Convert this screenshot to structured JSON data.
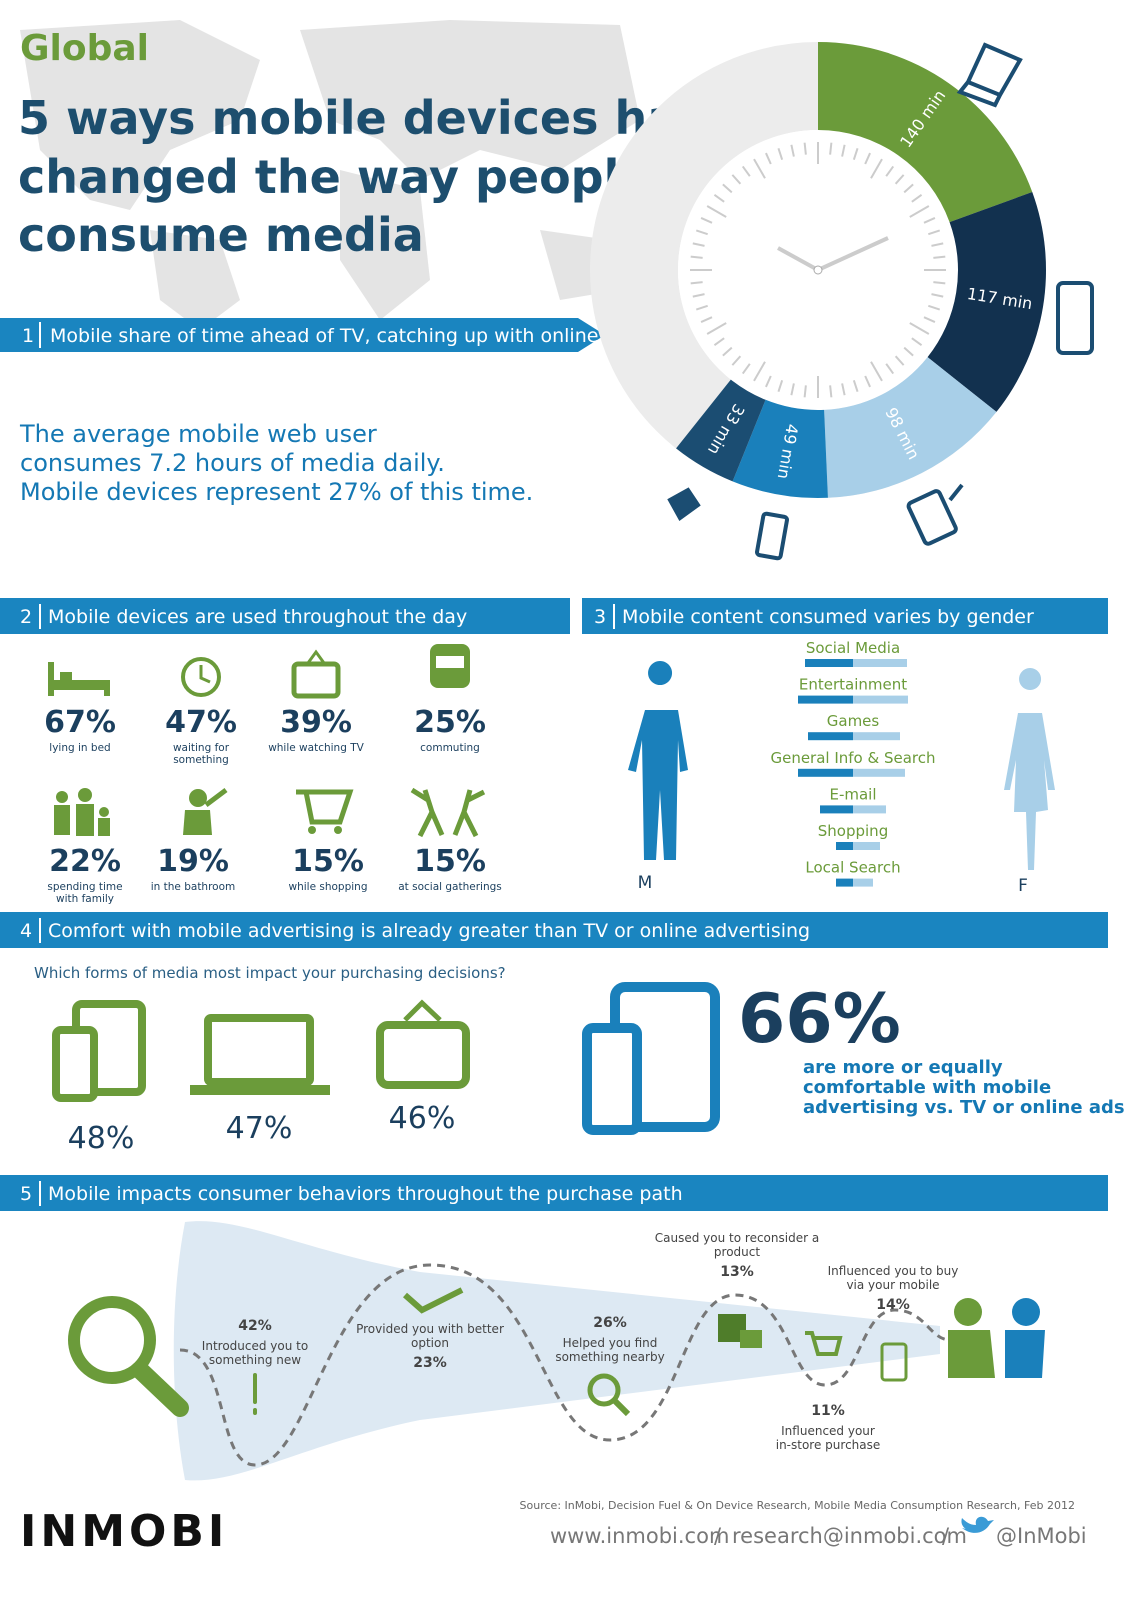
{
  "header": {
    "region": "Global",
    "title_lines": [
      "5 ways mobile devices have",
      "changed the way people",
      "consume media"
    ]
  },
  "section_1": {
    "number": "1",
    "heading": "Mobile share of time ahead of TV, catching up with online",
    "text_lines": [
      "The average mobile web user",
      "consumes 7.2 hours of media daily.",
      "Mobile devices represent 27% of this time."
    ],
    "time_chart": {
      "segments": [
        {
          "value": 140,
          "label": "140 min",
          "color": "#6b9b3a"
        },
        {
          "value": 117,
          "label": "117 min",
          "color": "#12314f"
        },
        {
          "value": 98,
          "label": "98 min",
          "color": "#a8cfe8"
        },
        {
          "value": 49,
          "label": "49 min",
          "color": "#1a80bb"
        },
        {
          "value": 33,
          "label": "33 min",
          "color": "#1b4d72"
        }
      ]
    }
  },
  "section_2": {
    "number": "2",
    "heading": "Mobile devices are used throughout the day",
    "items": [
      {
        "percent": "67%",
        "label_lines": [
          "lying in bed"
        ]
      },
      {
        "percent": "47%",
        "label_lines": [
          "waiting for",
          "something"
        ]
      },
      {
        "percent": "39%",
        "label_lines": [
          "while watching TV"
        ]
      },
      {
        "percent": "25%",
        "label_lines": [
          "commuting"
        ]
      },
      {
        "percent": "22%",
        "label_lines": [
          "spending time",
          "with family"
        ]
      },
      {
        "percent": "19%",
        "label_lines": [
          "in the bathroom"
        ]
      },
      {
        "percent": "15%",
        "label_lines": [
          "while shopping"
        ]
      },
      {
        "percent": "15%",
        "label_lines": [
          "at social gatherings"
        ]
      }
    ]
  },
  "section_3": {
    "number": "3",
    "heading": "Mobile content consumed varies by gender",
    "male_label": "M",
    "female_label": "F",
    "male_color": "#1a80bb",
    "female_color": "#a8cfe8",
    "categories": [
      "Social Media",
      "Entertainment",
      "Games",
      "General Info & Search",
      "E-mail",
      "Shopping",
      "Local Search"
    ],
    "male": [
      48,
      55,
      45,
      55,
      33,
      17,
      17
    ],
    "female": [
      54,
      55,
      47,
      52,
      33,
      27,
      20
    ]
  },
  "section_4": {
    "number": "4",
    "heading": "Comfort with mobile advertising  is already greater than TV or online advertising",
    "question": "Which forms of media most impact your purchasing decisions?",
    "items": [
      {
        "percent": "48%"
      },
      {
        "percent": "47%"
      },
      {
        "percent": "46%"
      }
    ],
    "highlight": {
      "percent": "66%",
      "text_lines": [
        "are more or equally",
        "comfortable with mobile",
        "advertising vs. TV or online ads"
      ]
    }
  },
  "section_5": {
    "number": "5",
    "heading": "Mobile impacts consumer behaviors throughout the purchase path",
    "steps": [
      {
        "percent": "42%",
        "label_lines": [
          "Introduced you to",
          "something new"
        ]
      },
      {
        "percent": "23%",
        "label_lines": [
          "Provided you with better",
          "option"
        ]
      },
      {
        "percent": "26%",
        "label_lines": [
          "Helped you find",
          "something nearby"
        ]
      },
      {
        "percent": "13%",
        "label_lines": [
          "Caused you to reconsider a",
          "product"
        ]
      },
      {
        "percent": "11%",
        "label_lines": [
          "Influenced your",
          "in-store purchase"
        ]
      },
      {
        "percent": "14%",
        "label_lines": [
          "Influenced you to buy",
          "via your mobile"
        ]
      }
    ]
  },
  "footer": {
    "source": "Source: InMobi, Decision Fuel & On Device Research, Mobile Media Consumption Research, Feb 2012",
    "logo": "INMOBI",
    "website": "www.inmobi.com",
    "separator": "/",
    "email": "research@inmobi.com",
    "twitter": "@InMobi"
  }
}
